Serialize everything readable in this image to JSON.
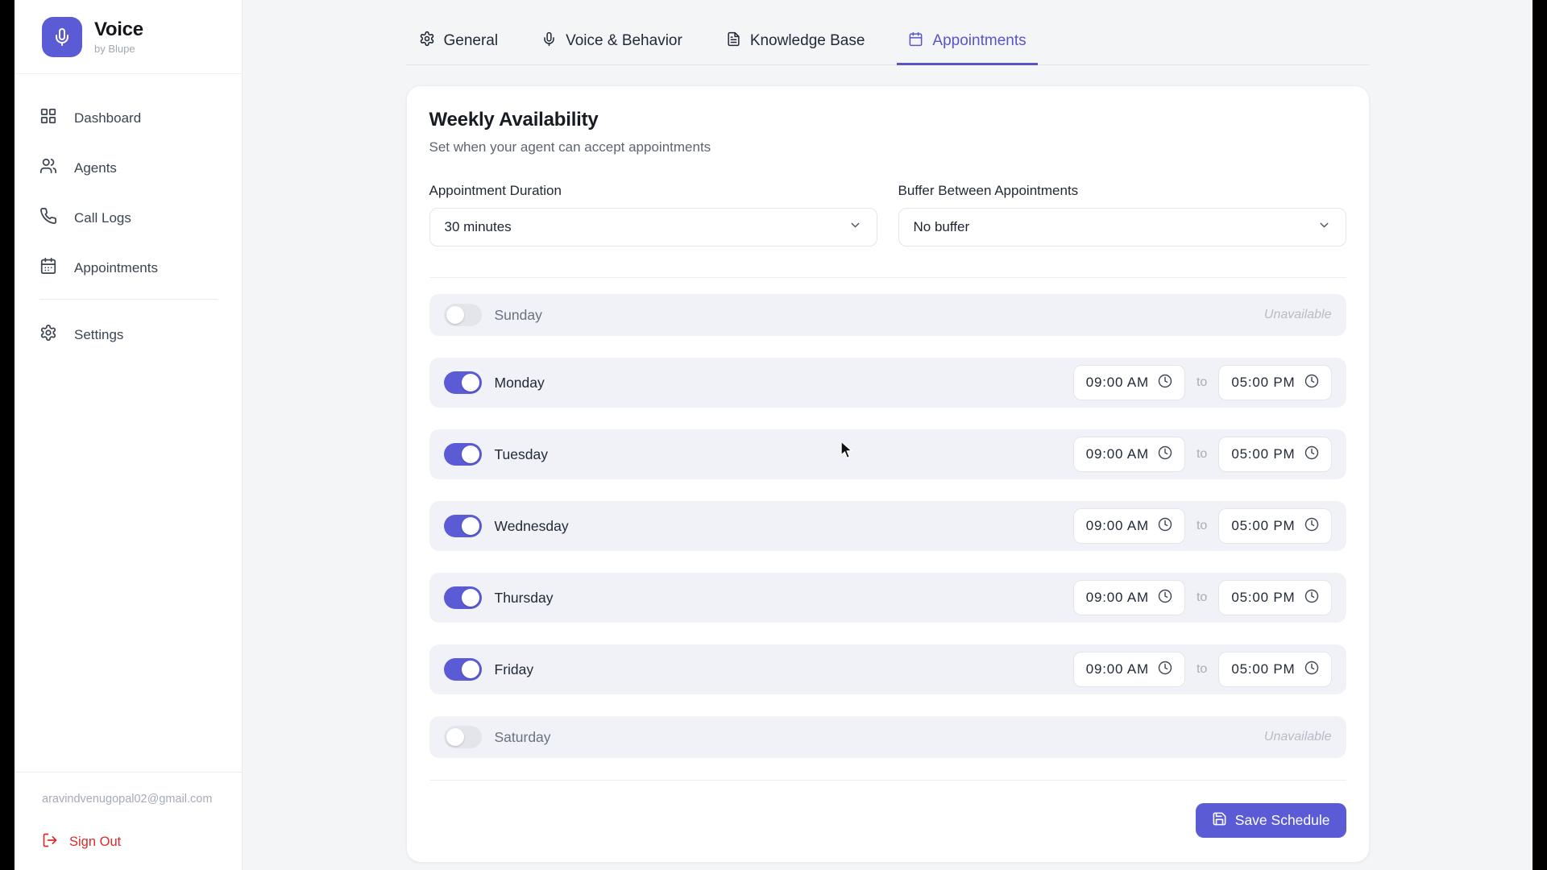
{
  "brand": {
    "name": "Voice",
    "tagline": "by Blupe"
  },
  "sidebar": {
    "nav": [
      {
        "label": "Dashboard",
        "icon": "dashboard-grid-icon"
      },
      {
        "label": "Agents",
        "icon": "agents-users-icon"
      },
      {
        "label": "Call Logs",
        "icon": "phone-icon"
      },
      {
        "label": "Appointments",
        "icon": "calendar-icon"
      }
    ],
    "settings_label": "Settings",
    "email": "aravindvenugopal02@gmail.com",
    "sign_out_label": "Sign Out"
  },
  "tabs": [
    {
      "label": "General",
      "icon": "gear-icon",
      "active": false
    },
    {
      "label": "Voice & Behavior",
      "icon": "mic-icon",
      "active": false
    },
    {
      "label": "Knowledge Base",
      "icon": "document-icon",
      "active": false
    },
    {
      "label": "Appointments",
      "icon": "calendar-icon",
      "active": true
    }
  ],
  "panel": {
    "title": "Weekly Availability",
    "subtitle": "Set when your agent can accept appointments",
    "duration": {
      "label": "Appointment Duration",
      "value": "30 minutes"
    },
    "buffer": {
      "label": "Buffer Between Appointments",
      "value": "No buffer"
    },
    "to_label": "to",
    "unavailable_label": "Unavailable",
    "days": [
      {
        "name": "Sunday",
        "enabled": false
      },
      {
        "name": "Monday",
        "enabled": true,
        "start": "09:00 AM",
        "end": "05:00 PM"
      },
      {
        "name": "Tuesday",
        "enabled": true,
        "start": "09:00 AM",
        "end": "05:00 PM"
      },
      {
        "name": "Wednesday",
        "enabled": true,
        "start": "09:00 AM",
        "end": "05:00 PM"
      },
      {
        "name": "Thursday",
        "enabled": true,
        "start": "09:00 AM",
        "end": "05:00 PM"
      },
      {
        "name": "Friday",
        "enabled": true,
        "start": "09:00 AM",
        "end": "05:00 PM"
      },
      {
        "name": "Saturday",
        "enabled": false
      }
    ],
    "save_label": "Save Schedule"
  },
  "colors": {
    "accent": "#5b5bd6",
    "tab_active": "#5a54cb",
    "danger": "#d92b2b",
    "page_bg": "#f4f5f7",
    "row_bg": "#f0f2f8"
  }
}
